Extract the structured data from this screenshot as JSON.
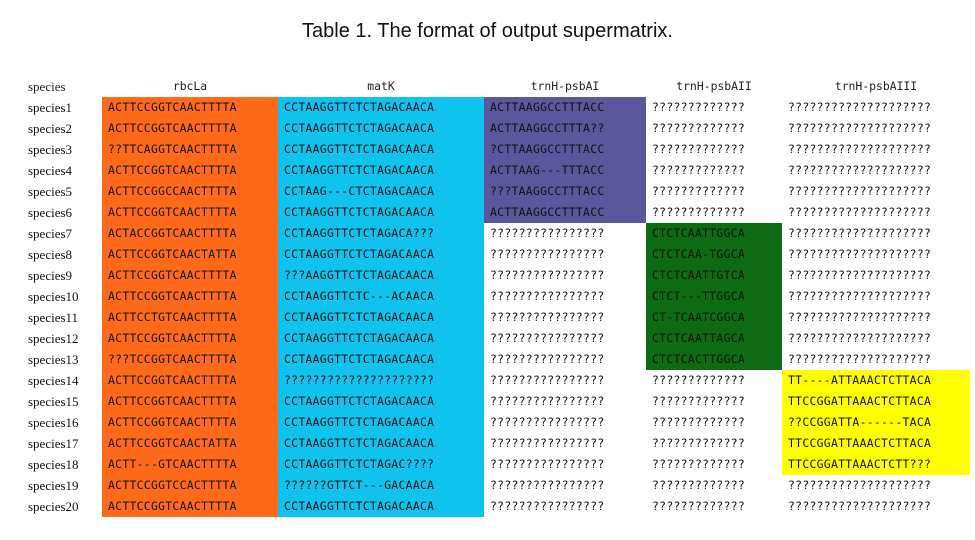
{
  "title": "Table 1. The format of output supermatrix.",
  "header": [
    "species",
    "rbcLa",
    "matK",
    "trnH-psbAI",
    "trnH-psbAII",
    "trnH-psbAIII"
  ],
  "colors": {
    "orange": "#ff6a1a",
    "cyan": "#10c3ef",
    "purple": "#5a579d",
    "green": "#0d6b14",
    "yellow": "#ffff00"
  },
  "rows": [
    {
      "species": "species1",
      "rbcLa": "ACTTCCGGTCAACTTTTA",
      "matK": "CCTAAGGTTCTCTAGACAACA",
      "t1": "ACTTAAGGCCTTTACC",
      "t2": "?????????????",
      "t3": "????????????????????"
    },
    {
      "species": "species2",
      "rbcLa": "ACTTCCGGTCAACTTTTA",
      "matK": "CCTAAGGTTCTCTAGACAACA",
      "t1": "ACTTAAGGCCTTTA??",
      "t2": "?????????????",
      "t3": "????????????????????"
    },
    {
      "species": "species3",
      "rbcLa": "??TTCAGGTCAACTTTTA",
      "matK": "CCTAAGGTTCTCTAGACAACA",
      "t1": "?CTTAAGGCCTTTACC",
      "t2": "?????????????",
      "t3": "????????????????????"
    },
    {
      "species": "species4",
      "rbcLa": "ACTTCCGGTCAACTTTTA",
      "matK": "CCTAAGGTTCTCTAGACAACA",
      "t1": "ACTTAAG---TTTACC",
      "t2": "?????????????",
      "t3": "????????????????????"
    },
    {
      "species": "species5",
      "rbcLa": "ACTTCCGGCCAACTTTTA",
      "matK": "CCTAAG---CTCTAGACAACA",
      "t1": "???TAAGGCCTTTACC",
      "t2": "?????????????",
      "t3": "????????????????????"
    },
    {
      "species": "species6",
      "rbcLa": "ACTTCCGGTCAACTTTTA",
      "matK": "CCTAAGGTTCTCTAGACAACA",
      "t1": "ACTTAAGGCCTTTACC",
      "t2": "?????????????",
      "t3": "????????????????????"
    },
    {
      "species": "species7",
      "rbcLa": "ACTACCGGTCAACTTTTA",
      "matK": "CCTAAGGTTCTCTAGACA???",
      "t1": "????????????????",
      "t2": "CTCTCAATTGGCA",
      "t3": "????????????????????"
    },
    {
      "species": "species8",
      "rbcLa": "ACTTCCGGTCAACTATTA",
      "matK": "CCTAAGGTTCTCTAGACAACA",
      "t1": "????????????????",
      "t2": "CTCTCAA-TGGCA",
      "t3": "????????????????????"
    },
    {
      "species": "species9",
      "rbcLa": "ACTTCCGGTCAACTTTTA",
      "matK": "???AAGGTTCTCTAGACAACA",
      "t1": "????????????????",
      "t2": "CTCTCAATTGTCA",
      "t3": "????????????????????"
    },
    {
      "species": "species10",
      "rbcLa": "ACTTCCGGTCAACTTTTA",
      "matK": "CCTAAGGTTCTC---ACAACA",
      "t1": "????????????????",
      "t2": "CTCT---TTGGCA",
      "t3": "????????????????????"
    },
    {
      "species": "species11",
      "rbcLa": "ACTTCCTGTCAACTTTTA",
      "matK": "CCTAAGGTTCTCTAGACAACA",
      "t1": "????????????????",
      "t2": "CT-TCAATCGGCA",
      "t3": "????????????????????"
    },
    {
      "species": "species12",
      "rbcLa": "ACTTCCGGTCAACTTTTA",
      "matK": "CCTAAGGTTCTCTAGACAACA",
      "t1": "????????????????",
      "t2": "CTCTCAATTAGCA",
      "t3": "????????????????????"
    },
    {
      "species": "species13",
      "rbcLa": "???TCCGGTCAACTTTTA",
      "matK": "CCTAAGGTTCTCTAGACAACA",
      "t1": "????????????????",
      "t2": "CTCTCACTTGGCA",
      "t3": "????????????????????"
    },
    {
      "species": "species14",
      "rbcLa": "ACTTCCGGTCAACTTTTA",
      "matK": "?????????????????????",
      "t1": "????????????????",
      "t2": "?????????????",
      "t3": "TT----ATTAAACTCTTACA"
    },
    {
      "species": "species15",
      "rbcLa": "ACTTCCGGTCAACTTTTA",
      "matK": "CCTAAGGTTCTCTAGACAACA",
      "t1": "????????????????",
      "t2": "?????????????",
      "t3": "TTCCGGATTAAACTCTTACA"
    },
    {
      "species": "species16",
      "rbcLa": "ACTTCCGGTCAACTTTTA",
      "matK": "CCTAAGGTTCTCTAGACAACA",
      "t1": "????????????????",
      "t2": "?????????????",
      "t3": "??CCGGATTA------TACA"
    },
    {
      "species": "species17",
      "rbcLa": "ACTTCCGGTCAACTATTA",
      "matK": "CCTAAGGTTCTCTAGACAACA",
      "t1": "????????????????",
      "t2": "?????????????",
      "t3": "TTCCGGATTAAACTCTTACA"
    },
    {
      "species": "species18",
      "rbcLa": "ACTT---GTCAACTTTTA",
      "matK": "CCTAAGGTTCTCTAGAC????",
      "t1": "????????????????",
      "t2": "?????????????",
      "t3": "TTCCGGATTAAACTCTT???"
    },
    {
      "species": "species19",
      "rbcLa": "ACTTCCGGTCCACTTTTA",
      "matK": "??????GTTCT---GACAACA",
      "t1": "????????????????",
      "t2": "?????????????",
      "t3": "????????????????????"
    },
    {
      "species": "species20",
      "rbcLa": "ACTTCCGGTCAACTTTTA",
      "matK": "CCTAAGGTTCTCTAGACAACA",
      "t1": "????????????????",
      "t2": "?????????????",
      "t3": "????????????????????"
    }
  ]
}
